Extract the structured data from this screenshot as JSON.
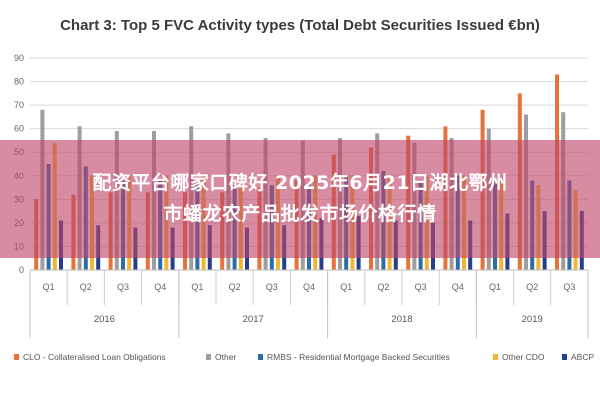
{
  "chart_data": {
    "type": "bar",
    "title": "Chart 3: Top 5 FVC Activity types (Total Debt Securities Issued €bn)",
    "xlabel": "",
    "ylabel": "",
    "ylim": [
      0,
      90
    ],
    "yticks": [
      0,
      10,
      20,
      30,
      40,
      50,
      60,
      70,
      80,
      90
    ],
    "grid": true,
    "legend_position": "bottom",
    "categories": [
      "Q1",
      "Q2",
      "Q3",
      "Q4",
      "Q1",
      "Q2",
      "Q3",
      "Q4",
      "Q1",
      "Q2",
      "Q3",
      "Q4",
      "Q1",
      "Q2",
      "Q3"
    ],
    "year_groups": [
      {
        "label": "2016",
        "count": 4
      },
      {
        "label": "2017",
        "count": 4
      },
      {
        "label": "2018",
        "count": 4
      },
      {
        "label": "2019",
        "count": 3
      }
    ],
    "series": [
      {
        "name": "CLO - Collateralised Loan Obligations",
        "color": "#e8723a",
        "values": [
          30,
          32,
          33,
          33,
          33,
          33,
          35,
          38,
          49,
          52,
          57,
          61,
          68,
          75,
          83
        ]
      },
      {
        "name": "Other",
        "color": "#9e9e9e",
        "values": [
          68,
          61,
          59,
          59,
          61,
          58,
          56,
          55,
          56,
          58,
          54,
          56,
          60,
          66,
          67
        ]
      },
      {
        "name": "RMBS - Residential Mortgage Backed Securities",
        "color": "#2e6da4",
        "values": [
          45,
          44,
          38,
          38,
          37,
          36,
          36,
          37,
          40,
          42,
          38,
          40,
          38,
          38,
          38
        ]
      },
      {
        "name": "Other CDO",
        "color": "#f2b632",
        "values": [
          54,
          40,
          40,
          40,
          40,
          40,
          40,
          40,
          40,
          40,
          40,
          40,
          38,
          36,
          34
        ]
      },
      {
        "name": "ABCP",
        "color": "#253f8c",
        "values": [
          21,
          19,
          18,
          18,
          19,
          18,
          19,
          22,
          23,
          21,
          20,
          21,
          24,
          25,
          25
        ]
      }
    ]
  },
  "overlay": {
    "line1": "配资平台哪家口碑好 2025年6月21日湖北鄂州",
    "line2": "市蟠龙农产品批发市场价格行情"
  }
}
